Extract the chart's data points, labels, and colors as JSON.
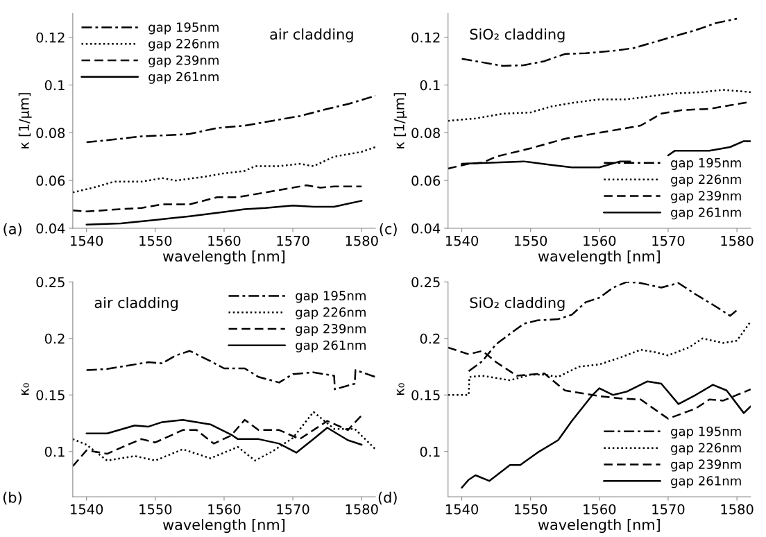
{
  "chart_data": [
    {
      "type": "line",
      "xlabel": "wavelength [nm]",
      "ylabel": "κ [1/µm]",
      "annotations": [
        "(a)",
        "air cladding"
      ],
      "xlim": [
        1538,
        1582
      ],
      "xticks": [
        1540,
        1550,
        1560,
        1570,
        1580
      ],
      "ylim": [
        0.04,
        0.13
      ],
      "yticks": [
        0.04,
        0.06,
        0.08,
        0.1,
        0.12
      ],
      "legend": "top left",
      "grid": false,
      "series": [
        {
          "name": "gap 195nm",
          "color": "#000000",
          "line_style": "dashdot",
          "x": [
            1540,
            1545,
            1548,
            1552,
            1555,
            1559,
            1563,
            1567,
            1571,
            1575,
            1578,
            1582
          ],
          "values": [
            0.076,
            0.0775,
            0.0785,
            0.079,
            0.0795,
            0.082,
            0.083,
            0.085,
            0.087,
            0.09,
            0.092,
            0.0955
          ]
        },
        {
          "name": "gap 226nm",
          "color": "#000000",
          "line_style": "dotted",
          "x": [
            1538,
            1541,
            1544,
            1548,
            1551,
            1553,
            1557,
            1560,
            1563,
            1564.5,
            1568,
            1571,
            1573,
            1576,
            1580,
            1582
          ],
          "values": [
            0.055,
            0.057,
            0.0595,
            0.0595,
            0.061,
            0.06,
            0.0615,
            0.063,
            0.064,
            0.066,
            0.066,
            0.067,
            0.066,
            0.07,
            0.072,
            0.074
          ]
        },
        {
          "name": "gap 239nm",
          "color": "#000000",
          "line_style": "dashed",
          "x": [
            1538,
            1540,
            1545,
            1548,
            1551,
            1555,
            1559,
            1562,
            1564,
            1566,
            1569,
            1572,
            1574,
            1576,
            1580
          ],
          "values": [
            0.0475,
            0.047,
            0.048,
            0.0485,
            0.05,
            0.05,
            0.053,
            0.053,
            0.054,
            0.055,
            0.0565,
            0.058,
            0.057,
            0.0575,
            0.0575
          ]
        },
        {
          "name": "gap 261nm",
          "color": "#000000",
          "line_style": "solid",
          "x": [
            1540,
            1545,
            1550,
            1555,
            1560,
            1563,
            1566,
            1570,
            1573,
            1576,
            1580
          ],
          "values": [
            0.0415,
            0.042,
            0.0435,
            0.045,
            0.0468,
            0.048,
            0.0485,
            0.0495,
            0.049,
            0.049,
            0.0515
          ]
        }
      ]
    },
    {
      "type": "line",
      "xlabel": "wavelength [nm]",
      "ylabel": "κ [1/µm]",
      "annotations": [
        "(c)",
        "SiO₂ cladding"
      ],
      "xlim": [
        1538,
        1582
      ],
      "xticks": [
        1540,
        1550,
        1560,
        1570,
        1580
      ],
      "ylim": [
        0.04,
        0.13
      ],
      "yticks": [
        0.04,
        0.06,
        0.08,
        0.1,
        0.12
      ],
      "legend": "bottom right",
      "grid": false,
      "series": [
        {
          "name": "gap 195nm",
          "color": "#000000",
          "line_style": "dashdot",
          "x": [
            1540,
            1543,
            1546,
            1549,
            1552,
            1555,
            1558,
            1562,
            1565,
            1568,
            1571,
            1574,
            1577,
            1580
          ],
          "values": [
            0.111,
            0.1095,
            0.108,
            0.1083,
            0.11,
            0.113,
            0.1133,
            0.1143,
            0.1155,
            0.118,
            0.1205,
            0.123,
            0.126,
            0.1278
          ]
        },
        {
          "name": "gap 226nm",
          "color": "#000000",
          "line_style": "dotted",
          "x": [
            1538,
            1542,
            1546,
            1550,
            1553,
            1556,
            1560,
            1564,
            1568,
            1571,
            1575,
            1578,
            1582
          ],
          "values": [
            0.085,
            0.086,
            0.088,
            0.0885,
            0.091,
            0.0925,
            0.094,
            0.094,
            0.0955,
            0.0965,
            0.097,
            0.098,
            0.097
          ]
        },
        {
          "name": "gap 239nm",
          "color": "#000000",
          "line_style": "dashed",
          "x": [
            1538,
            1541,
            1543,
            1545,
            1550,
            1555,
            1560,
            1563,
            1566,
            1569,
            1572,
            1576,
            1579,
            1582
          ],
          "values": [
            0.065,
            0.067,
            0.0675,
            0.07,
            0.0735,
            0.0775,
            0.08,
            0.0815,
            0.083,
            0.088,
            0.0895,
            0.09,
            0.0915,
            0.093
          ]
        },
        {
          "name": "gap 261nm",
          "color": "#000000",
          "line_style": "solid",
          "x": [
            1540,
            1545,
            1549,
            1553,
            1556,
            1560,
            1563,
            1564.5,
            1567,
            1570,
            1571,
            1576,
            1579,
            1581,
            1582
          ],
          "values": [
            0.067,
            0.0675,
            0.068,
            0.0665,
            0.0655,
            0.0655,
            0.068,
            0.068,
            null,
            0.0705,
            0.0725,
            0.0725,
            0.074,
            0.0765,
            0.0765
          ]
        }
      ]
    },
    {
      "type": "line",
      "xlabel": "wavelength [nm]",
      "ylabel": "κ₀",
      "annotations": [
        "(b)",
        "air cladding"
      ],
      "xlim": [
        1538,
        1582
      ],
      "xticks": [
        1540,
        1550,
        1560,
        1570,
        1580
      ],
      "ylim": [
        0.06,
        0.25
      ],
      "yticks": [
        0.1,
        0.15,
        0.2,
        0.25
      ],
      "legend": "top right",
      "grid": false,
      "series": [
        {
          "name": "gap 195nm",
          "color": "#000000",
          "line_style": "dashdot",
          "x": [
            1540,
            1543,
            1546,
            1549,
            1551,
            1553,
            1555,
            1558,
            1560,
            1563,
            1565,
            1568,
            1570,
            1573,
            1576,
            1576.1,
            1579,
            1579.1,
            1582
          ],
          "values": [
            0.172,
            0.173,
            0.176,
            0.179,
            0.178,
            0.185,
            0.189,
            0.18,
            0.1735,
            0.1735,
            0.166,
            0.161,
            0.1685,
            0.17,
            0.167,
            0.155,
            0.16,
            0.172,
            0.166
          ]
        },
        {
          "name": "gap 226nm",
          "color": "#000000",
          "line_style": "dotted",
          "x": [
            1538,
            1540,
            1543,
            1547,
            1550,
            1554,
            1558,
            1562,
            1564.5,
            1567,
            1570,
            1573,
            1576,
            1579,
            1582
          ],
          "values": [
            0.111,
            0.106,
            0.092,
            0.096,
            0.092,
            0.102,
            0.094,
            0.104,
            0.092,
            0.1,
            0.112,
            0.135,
            0.12,
            0.12,
            0.102
          ]
        },
        {
          "name": "gap 239nm",
          "color": "#000000",
          "line_style": "dashed",
          "x": [
            1538,
            1540,
            1543,
            1546,
            1548,
            1550,
            1554,
            1556,
            1558.5,
            1561,
            1563,
            1565,
            1568,
            1571,
            1575,
            1578,
            1580
          ],
          "values": [
            0.087,
            0.101,
            0.098,
            0.106,
            0.111,
            0.108,
            0.119,
            0.119,
            0.107,
            0.114,
            0.128,
            0.119,
            0.119,
            0.111,
            0.127,
            0.119,
            0.132
          ]
        },
        {
          "name": "gap 261nm",
          "color": "#000000",
          "line_style": "solid",
          "x": [
            1540,
            1543,
            1547,
            1549,
            1551,
            1554,
            1558,
            1561,
            1562,
            1565,
            1568,
            1570.5,
            1573,
            1575,
            1578,
            1580
          ],
          "values": [
            0.116,
            0.116,
            0.123,
            0.122,
            0.126,
            0.128,
            0.124,
            0.115,
            0.111,
            0.111,
            0.107,
            0.099,
            0.111,
            0.121,
            0.11,
            0.106
          ]
        }
      ]
    },
    {
      "type": "line",
      "xlabel": "wavelength [nm]",
      "ylabel": "κ₀",
      "annotations": [
        "(d)",
        "SiO₂ cladding"
      ],
      "xlim": [
        1538,
        1582
      ],
      "xticks": [
        1540,
        1550,
        1560,
        1570,
        1580
      ],
      "ylim": [
        0.06,
        0.25
      ],
      "yticks": [
        0.1,
        0.15,
        0.2,
        0.25
      ],
      "legend": "bottom right",
      "grid": false,
      "series": [
        {
          "name": "gap 195nm",
          "color": "#000000",
          "line_style": "dashdot",
          "x": [
            1541,
            1543,
            1545,
            1547,
            1549,
            1551,
            1554,
            1556,
            1558,
            1560,
            1562,
            1564,
            1566,
            1569,
            1571.5,
            1574,
            1577,
            1579,
            1580
          ],
          "values": [
            0.171,
            0.18,
            0.195,
            0.204,
            0.213,
            0.216,
            0.217,
            0.221,
            0.232,
            0.236,
            0.245,
            0.25,
            0.249,
            0.245,
            0.249,
            0.239,
            0.228,
            0.22,
            0.225
          ]
        },
        {
          "name": "gap 226nm",
          "color": "#000000",
          "line_style": "dotted",
          "x": [
            1538,
            1541,
            1541.1,
            1543,
            1547,
            1550,
            1552,
            1554,
            1557,
            1560,
            1563,
            1566,
            1568,
            1570,
            1573,
            1575,
            1578,
            1580,
            1582
          ],
          "values": [
            0.15,
            0.15,
            0.166,
            0.167,
            0.163,
            0.168,
            0.168,
            0.166,
            0.175,
            0.177,
            0.183,
            0.19,
            0.188,
            0.185,
            0.192,
            0.2,
            0.196,
            0.198,
            0.215
          ]
        },
        {
          "name": "gap 239nm",
          "color": "#000000",
          "line_style": "dashed",
          "x": [
            1538,
            1541,
            1543,
            1545,
            1548,
            1552,
            1555,
            1558,
            1560,
            1563,
            1566,
            1570,
            1574,
            1576,
            1578,
            1582
          ],
          "values": [
            0.192,
            0.186,
            0.189,
            0.179,
            0.167,
            0.169,
            0.154,
            0.151,
            0.149,
            0.147,
            0.146,
            0.129,
            0.138,
            0.146,
            0.145,
            0.155
          ]
        },
        {
          "name": "gap 261nm",
          "color": "#000000",
          "line_style": "solid",
          "x": [
            1540,
            1541,
            1542,
            1544,
            1547,
            1548.5,
            1551,
            1554,
            1556,
            1559,
            1560,
            1562,
            1564,
            1567,
            1569,
            1571.5,
            1574,
            1576.5,
            1578.5,
            1581,
            1582
          ],
          "values": [
            0.068,
            0.075,
            0.079,
            0.074,
            0.088,
            0.088,
            0.099,
            0.11,
            0.127,
            0.15,
            0.156,
            0.15,
            0.153,
            0.162,
            0.16,
            0.142,
            0.15,
            0.159,
            0.154,
            0.134,
            0.14
          ]
        }
      ]
    }
  ]
}
